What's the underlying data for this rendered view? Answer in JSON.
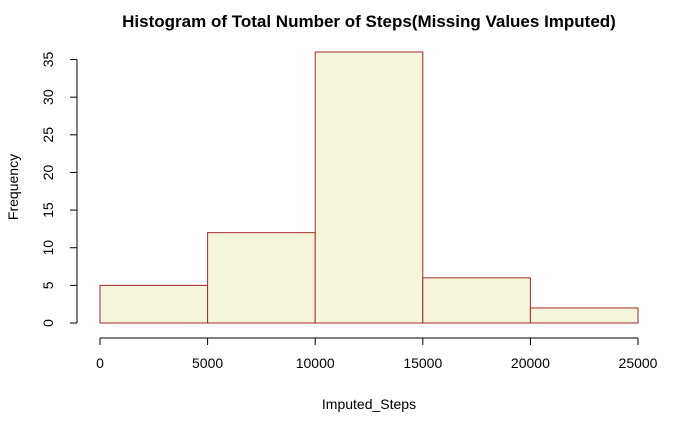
{
  "chart_data": {
    "type": "bar",
    "subtype": "histogram",
    "title": "Histogram of Total Number of Steps(Missing Values Imputed)",
    "xlabel": "Imputed_Steps",
    "ylabel": "Frequency",
    "bins": [
      {
        "start": 0,
        "end": 5000,
        "value": 5
      },
      {
        "start": 5000,
        "end": 10000,
        "value": 12
      },
      {
        "start": 10000,
        "end": 15000,
        "value": 36
      },
      {
        "start": 15000,
        "end": 20000,
        "value": 6
      },
      {
        "start": 20000,
        "end": 25000,
        "value": 2
      }
    ],
    "xlim": [
      0,
      25000
    ],
    "ylim": [
      0,
      36
    ],
    "x_ticks": [
      0,
      5000,
      10000,
      15000,
      20000,
      25000
    ],
    "y_ticks": [
      0,
      5,
      10,
      15,
      20,
      25,
      30,
      35
    ],
    "grid": false,
    "colors": {
      "bar_fill": "#f5f5dc",
      "bar_border": "#a52a2a",
      "axis": "#000000"
    }
  }
}
